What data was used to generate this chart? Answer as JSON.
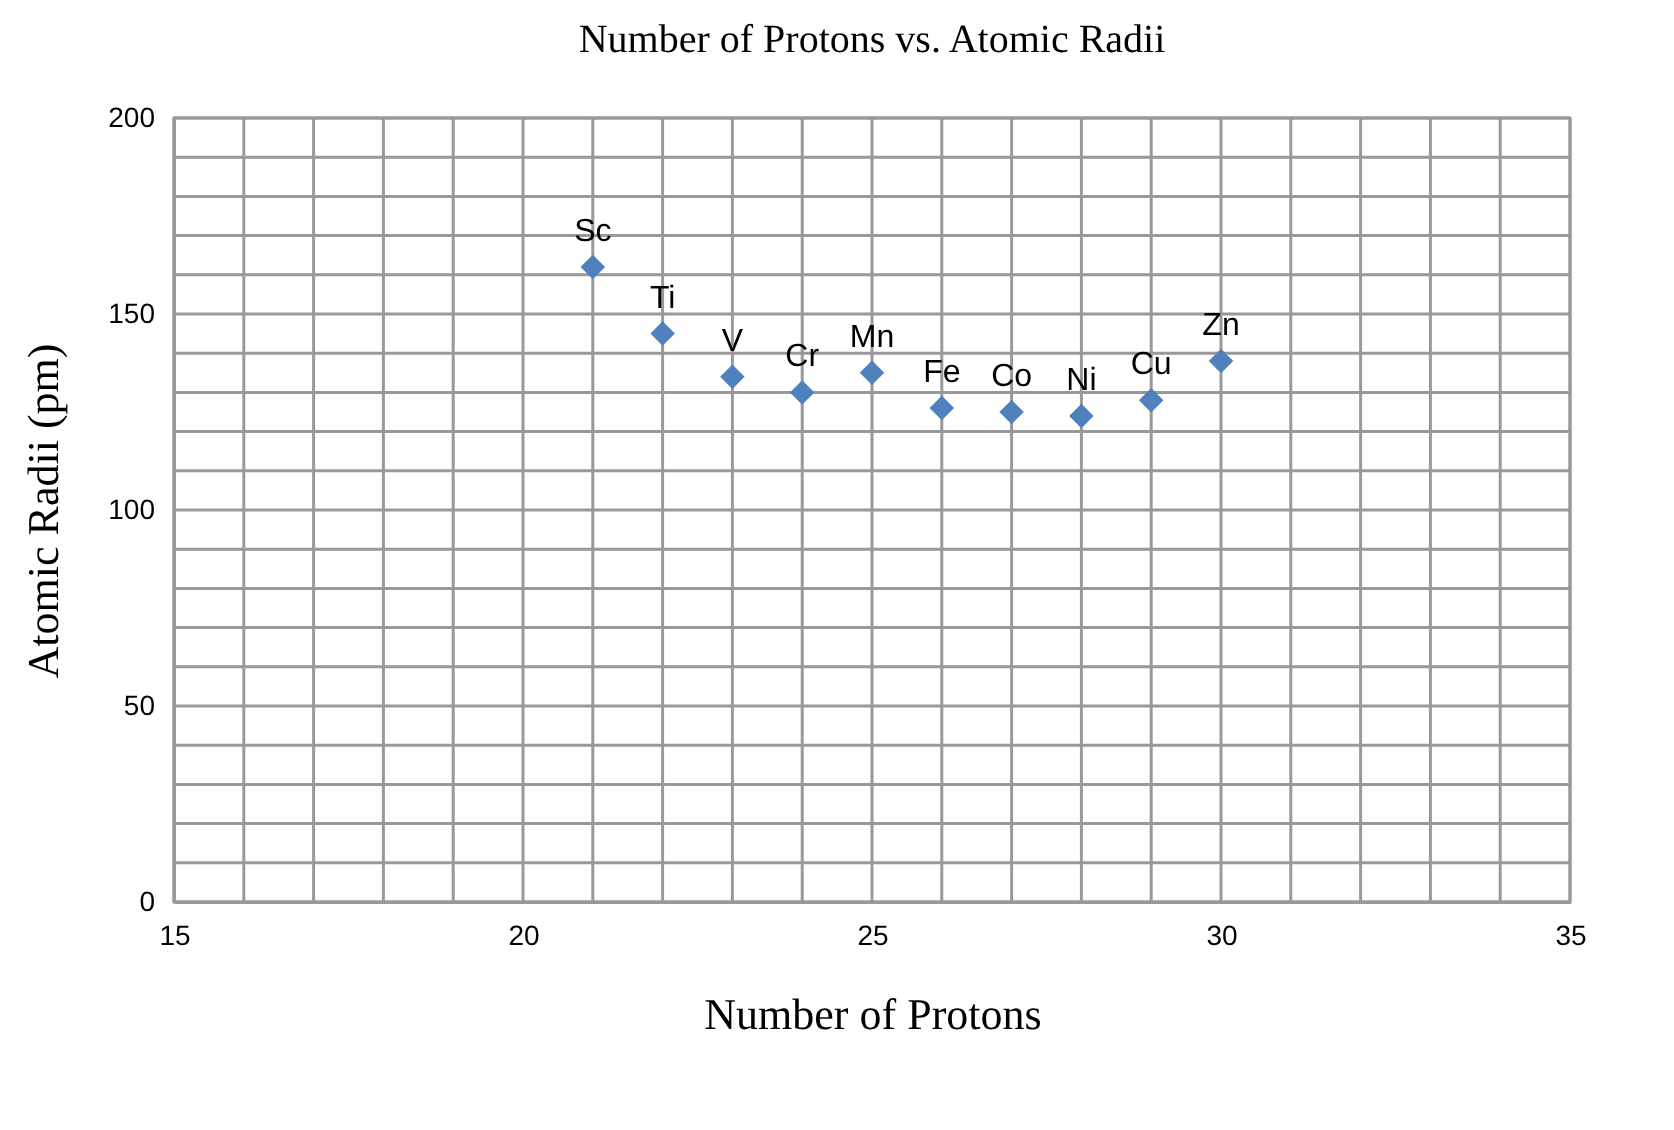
{
  "chart_data": {
    "type": "scatter",
    "title": "Number of Protons vs. Atomic Radii",
    "xlabel": "Number of Protons",
    "ylabel": "Atomic Radii (pm)",
    "x": [
      21,
      22,
      23,
      24,
      25,
      26,
      27,
      28,
      29,
      30
    ],
    "series": [
      {
        "color": "#4f81bd",
        "values": [
          162,
          145,
          134,
          130,
          135,
          126,
          125,
          124,
          128,
          138
        ]
      }
    ],
    "annotations": [
      {
        "text": "Sc",
        "x": 21,
        "y": 162
      },
      {
        "text": "Ti",
        "x": 22,
        "y": 145
      },
      {
        "text": "V",
        "x": 23,
        "y": 134
      },
      {
        "text": "Cr",
        "x": 24,
        "y": 130
      },
      {
        "text": "Mn",
        "x": 25,
        "y": 135
      },
      {
        "text": "Fe",
        "x": 26,
        "y": 126
      },
      {
        "text": "Co",
        "x": 27,
        "y": 125
      },
      {
        "text": "Ni",
        "x": 28,
        "y": 124
      },
      {
        "text": "Cu",
        "x": 29,
        "y": 128
      },
      {
        "text": "Zn",
        "x": 30,
        "y": 138
      }
    ],
    "xlim": [
      15,
      35
    ],
    "xticks": [
      15,
      {
        "value": 16,
        "label": null
      },
      {
        "value": 17,
        "label": null
      },
      {
        "value": 18,
        "label": null
      },
      {
        "value": 19,
        "label": null
      },
      20,
      {
        "value": 21,
        "label": null
      },
      {
        "value": 22,
        "label": null
      },
      {
        "value": 23,
        "label": null
      },
      {
        "value": 24,
        "label": null
      },
      25,
      {
        "value": 26,
        "label": null
      },
      {
        "value": 27,
        "label": null
      },
      {
        "value": 28,
        "label": null
      },
      {
        "value": 29,
        "label": null
      },
      30,
      {
        "value": 31,
        "label": null
      },
      {
        "value": 32,
        "label": null
      },
      {
        "value": 33,
        "label": null
      },
      {
        "value": 34,
        "label": null
      },
      35
    ],
    "ylim": [
      0,
      200
    ],
    "yticks": [
      0,
      {
        "value": 10,
        "label": null
      },
      {
        "value": 20,
        "label": null
      },
      {
        "value": 30,
        "label": null
      },
      {
        "value": 40,
        "label": null
      },
      50,
      {
        "value": 60,
        "label": null
      },
      {
        "value": 70,
        "label": null
      },
      {
        "value": 80,
        "label": null
      },
      {
        "value": 90,
        "label": null
      },
      100,
      {
        "value": 110,
        "label": null
      },
      {
        "value": 120,
        "label": null
      },
      {
        "value": 130,
        "label": null
      },
      {
        "value": 140,
        "label": null
      },
      150,
      {
        "value": 160,
        "label": null
      },
      {
        "value": 170,
        "label": null
      },
      {
        "value": 180,
        "label": null
      },
      {
        "value": 190,
        "label": null
      },
      200
    ],
    "grid": true,
    "marker": "diamond",
    "legend": false
  }
}
